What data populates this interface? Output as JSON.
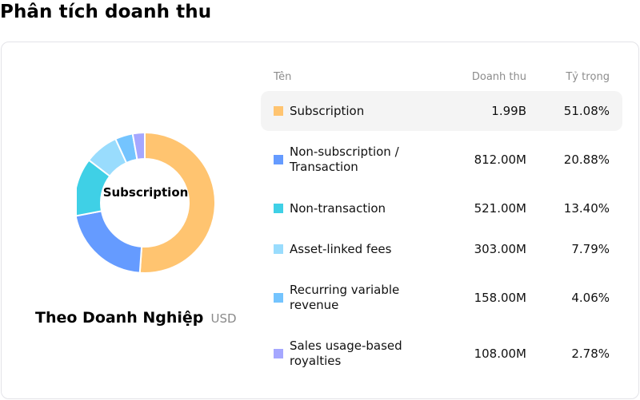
{
  "page": {
    "title": "Phân tích doanh thu"
  },
  "chart_card": {
    "center_label": "Subscription",
    "caption_title": "Theo Doanh Nghiệp",
    "caption_unit": "USD"
  },
  "table": {
    "headers": {
      "name": "Tên",
      "revenue": "Doanh thu",
      "share": "Tỷ trọng"
    },
    "rows": [
      {
        "name": "Subscription",
        "revenue": "1.99B",
        "share": "51.08%",
        "color": "#FFC470"
      },
      {
        "name": "Non-subscription / Transaction",
        "revenue": "812.00M",
        "share": "20.88%",
        "color": "#659BFF"
      },
      {
        "name": "Non-transaction",
        "revenue": "521.00M",
        "share": "13.40%",
        "color": "#3FD0E6"
      },
      {
        "name": "Asset-linked fees",
        "revenue": "303.00M",
        "share": "7.79%",
        "color": "#99DCFD"
      },
      {
        "name": "Recurring variable revenue",
        "revenue": "158.00M",
        "share": "4.06%",
        "color": "#74C4FE"
      },
      {
        "name": "Sales usage-based royalties",
        "revenue": "108.00M",
        "share": "2.78%",
        "color": "#A5A7FF"
      }
    ]
  },
  "chart_data": {
    "type": "pie",
    "subtype": "donut",
    "title": "Theo Doanh Nghiệp",
    "unit": "USD",
    "center_label": "Subscription",
    "categories": [
      "Subscription",
      "Non-subscription / Transaction",
      "Non-transaction",
      "Asset-linked fees",
      "Recurring variable revenue",
      "Sales usage-based royalties"
    ],
    "values": [
      1990000000,
      812000000,
      521000000,
      303000000,
      158000000,
      108000000
    ],
    "value_labels": [
      "1.99B",
      "812.00M",
      "521.00M",
      "303.00M",
      "158.00M",
      "108.00M"
    ],
    "percentages": [
      51.08,
      20.88,
      13.4,
      7.79,
      4.06,
      2.78
    ],
    "colors": [
      "#FFC470",
      "#659BFF",
      "#3FD0E6",
      "#99DCFD",
      "#74C4FE",
      "#A5A7FF"
    ],
    "start_angle": "12 o'clock, clockwise",
    "legend_position": "right (table)"
  }
}
